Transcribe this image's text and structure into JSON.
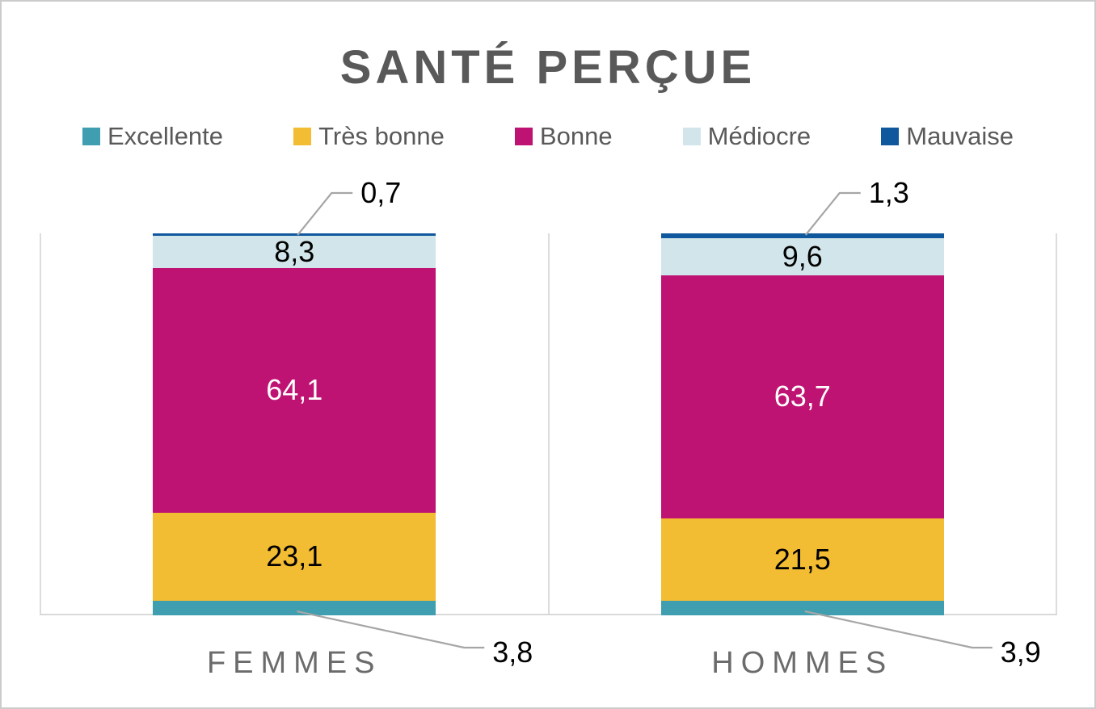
{
  "chart_data": {
    "type": "bar",
    "stacked": true,
    "orientation": "vertical",
    "title": "SANTÉ PERÇUE",
    "categories": [
      "FEMMES",
      "HOMMES"
    ],
    "series": [
      {
        "name": "Excellente",
        "color": "#3F9EAF",
        "values": [
          3.8,
          3.9
        ],
        "label_placement": "callout-below",
        "label_color": "#000000"
      },
      {
        "name": "Très bonne",
        "color": "#F2BC33",
        "values": [
          23.1,
          21.5
        ],
        "label_placement": "inside",
        "label_color": "#000000"
      },
      {
        "name": "Bonne",
        "color": "#BE1372",
        "values": [
          64.1,
          63.7
        ],
        "label_placement": "inside",
        "label_color": "#FFFFFF"
      },
      {
        "name": "Médiocre",
        "color": "#D2E5EB",
        "values": [
          8.3,
          9.6
        ],
        "label_placement": "inside",
        "label_color": "#000000"
      },
      {
        "name": "Mauvaise",
        "color": "#10589E",
        "values": [
          0.7,
          1.3
        ],
        "label_placement": "callout-above",
        "label_color": "#000000"
      }
    ],
    "ylim": [
      0,
      100
    ],
    "values_format": "french-decimal-comma",
    "legend_position": "top",
    "legend_order": [
      "Excellente",
      "Très bonne",
      "Bonne",
      "Médiocre",
      "Mauvaise"
    ],
    "gridlines": "vertical-category-separators"
  },
  "colors": {
    "title_text": "#595959",
    "legend_text": "#595959",
    "category_text": "#6B6B6B",
    "grid_line": "#DCDCDC",
    "axis_line": "#D9D9D9",
    "leader_line": "#A6A6A6",
    "background": "#FFFFFF",
    "border": "#CBCBCB"
  }
}
